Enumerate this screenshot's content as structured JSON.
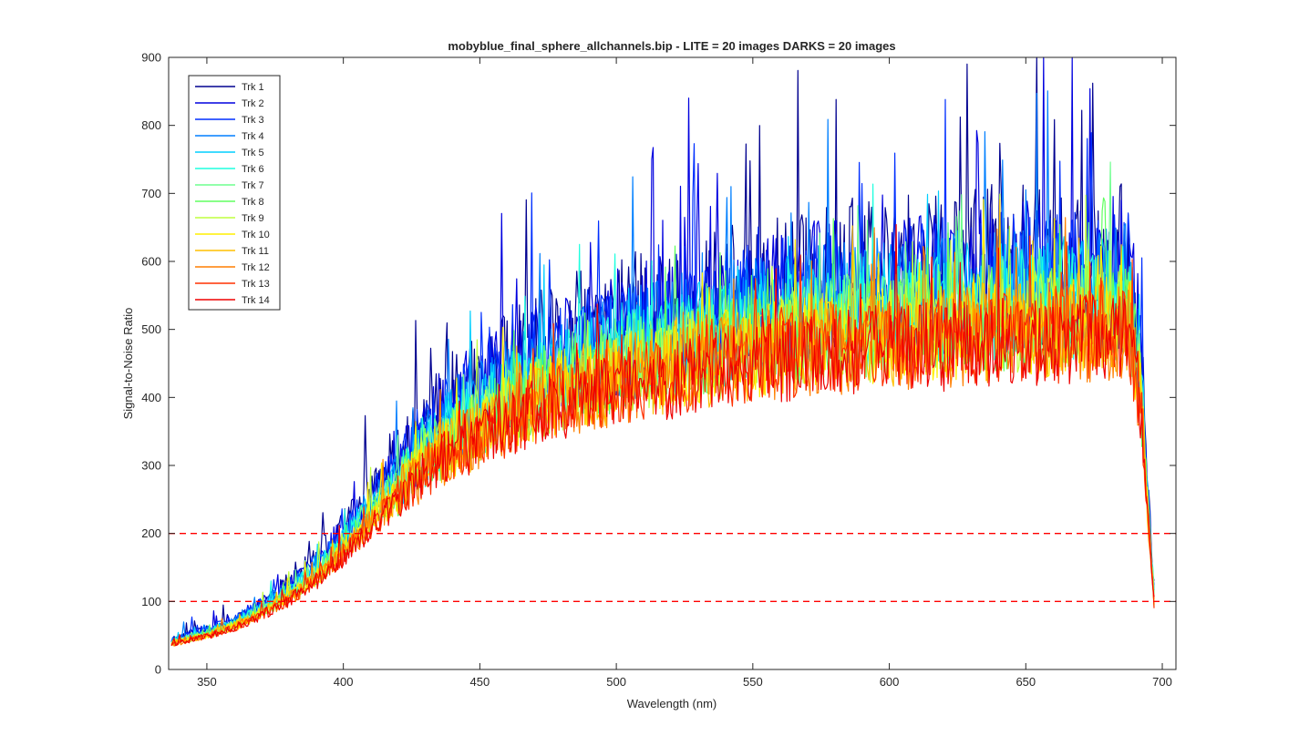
{
  "chart_data": {
    "type": "line",
    "title": "mobyblue_final_sphere_allchannels.bip - LITE =  20 images  DARKS = 20 images",
    "xlabel": "Wavelength (nm)",
    "ylabel": "Signal-to-Noise Ratio",
    "xlim": [
      336,
      705
    ],
    "ylim": [
      0,
      900
    ],
    "xticks": [
      350,
      400,
      450,
      500,
      550,
      600,
      650,
      700
    ],
    "yticks": [
      0,
      100,
      200,
      300,
      400,
      500,
      600,
      700,
      800,
      900
    ],
    "grid": false,
    "legend_position": "top-left",
    "x_start": 337,
    "x_end": 697,
    "x_step": 0.5,
    "series": [
      {
        "name": "Trk 1",
        "color": "#00008f",
        "base_scale": 1.0,
        "noise": 0.2,
        "seed": 11
      },
      {
        "name": "Trk 2",
        "color": "#0000df",
        "base_scale": 0.98,
        "noise": 0.19,
        "seed": 23
      },
      {
        "name": "Trk 3",
        "color": "#002fff",
        "base_scale": 0.96,
        "noise": 0.18,
        "seed": 37
      },
      {
        "name": "Trk 4",
        "color": "#007fff",
        "base_scale": 0.94,
        "noise": 0.17,
        "seed": 41
      },
      {
        "name": "Trk 5",
        "color": "#00cfff",
        "base_scale": 0.92,
        "noise": 0.16,
        "seed": 53
      },
      {
        "name": "Trk 6",
        "color": "#1fffdf",
        "base_scale": 0.9,
        "noise": 0.16,
        "seed": 67
      },
      {
        "name": "Trk 7",
        "color": "#6fff8f",
        "base_scale": 0.89,
        "noise": 0.15,
        "seed": 71
      },
      {
        "name": "Trk 8",
        "color": "#60ff60",
        "base_scale": 0.87,
        "noise": 0.15,
        "seed": 83
      },
      {
        "name": "Trk 9",
        "color": "#bfff3f",
        "base_scale": 0.86,
        "noise": 0.15,
        "seed": 97
      },
      {
        "name": "Trk 10",
        "color": "#ffef00",
        "base_scale": 0.85,
        "noise": 0.15,
        "seed": 101
      },
      {
        "name": "Trk 11",
        "color": "#ffbf00",
        "base_scale": 0.84,
        "noise": 0.15,
        "seed": 113
      },
      {
        "name": "Trk 12",
        "color": "#ff7f00",
        "base_scale": 0.83,
        "noise": 0.15,
        "seed": 127
      },
      {
        "name": "Trk 13",
        "color": "#ff3000",
        "base_scale": 0.82,
        "noise": 0.14,
        "seed": 131
      },
      {
        "name": "Trk 14",
        "color": "#ef0000",
        "base_scale": 0.81,
        "noise": 0.14,
        "seed": 149
      }
    ],
    "envelope": {
      "wavelengths": [
        337,
        350,
        360,
        370,
        380,
        390,
        400,
        410,
        420,
        430,
        440,
        450,
        460,
        470,
        480,
        490,
        500,
        520,
        540,
        560,
        580,
        600,
        620,
        640,
        660,
        670,
        680,
        688,
        692,
        695,
        697
      ],
      "snr": [
        45,
        60,
        75,
        98,
        125,
        160,
        205,
        258,
        305,
        355,
        390,
        415,
        440,
        462,
        480,
        495,
        505,
        525,
        545,
        560,
        572,
        580,
        587,
        592,
        596,
        598,
        600,
        595,
        480,
        250,
        120
      ]
    },
    "reference_lines": [
      {
        "y": 200,
        "color": "#ff0000",
        "style": "dashed"
      },
      {
        "y": 100,
        "color": "#ff0000",
        "style": "dashed"
      }
    ]
  }
}
